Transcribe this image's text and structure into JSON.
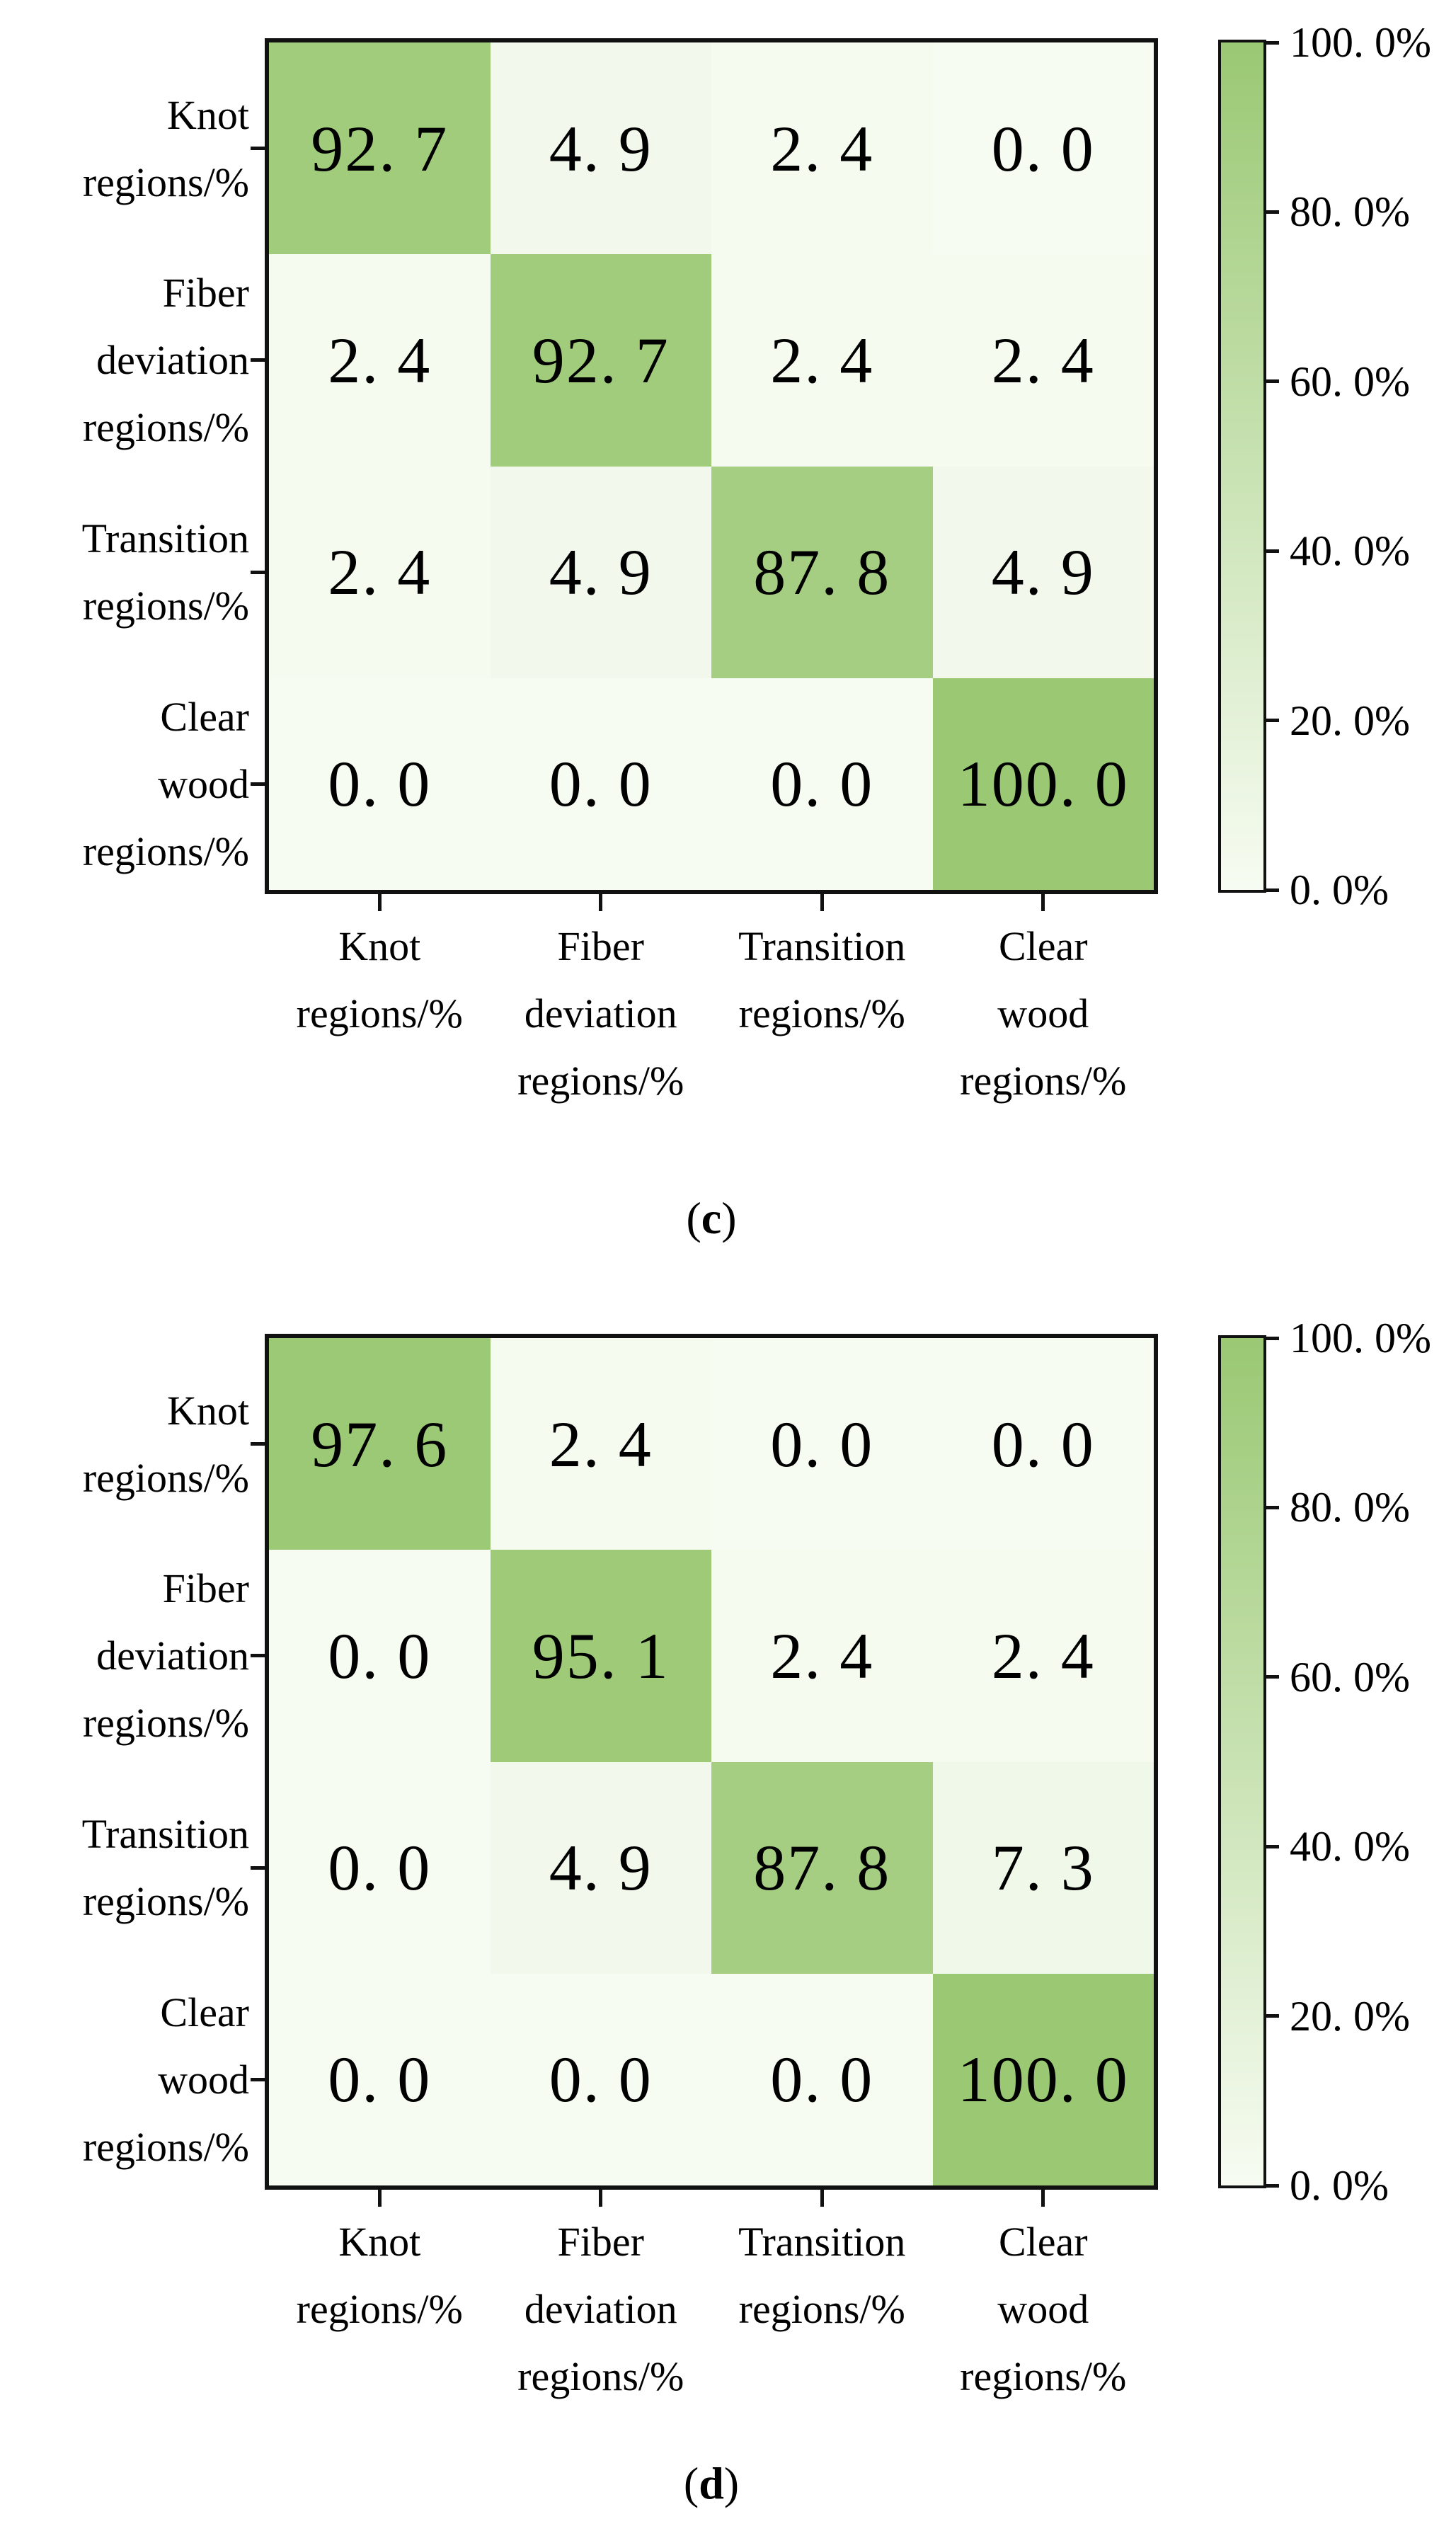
{
  "figure": {
    "background": "#ffffff",
    "colors": {
      "colormap_low": "#f7fcf2",
      "colormap_high": "#9ac873",
      "axis_border": "#111111",
      "text": "#000000"
    }
  },
  "chart_data": [
    {
      "type": "heatmap",
      "caption_letter": "c",
      "caption_display": "(c)",
      "categories": [
        "Knot regions/%",
        "Fiber deviation regions/%",
        "Transition regions/%",
        "Clear wood regions/%"
      ],
      "row_label_lines": [
        [
          "Knot",
          "regions/%"
        ],
        [
          "Fiber",
          "deviation",
          "regions/%"
        ],
        [
          "Transition",
          "regions/%"
        ],
        [
          "Clear",
          "wood",
          "regions/%"
        ]
      ],
      "col_label_lines": [
        [
          "Knot",
          "regions/%"
        ],
        [
          "Fiber",
          "deviation",
          "regions/%"
        ],
        [
          "Transition",
          "regions/%"
        ],
        [
          "Clear",
          "wood",
          "regions/%"
        ]
      ],
      "values": [
        [
          92.7,
          4.9,
          2.4,
          0.0
        ],
        [
          2.4,
          92.7,
          2.4,
          2.4
        ],
        [
          2.4,
          4.9,
          87.8,
          4.9
        ],
        [
          0.0,
          0.0,
          0.0,
          100.0
        ]
      ],
      "values_display": [
        [
          "92. 7",
          "4. 9",
          "2. 4",
          "0. 0"
        ],
        [
          "2. 4",
          "92. 7",
          "2. 4",
          "2. 4"
        ],
        [
          "2. 4",
          "4. 9",
          "87. 8",
          "4. 9"
        ],
        [
          "0. 0",
          "0. 0",
          "0. 0",
          "100. 0"
        ]
      ],
      "colorbar": {
        "min": 0,
        "max": 100,
        "tick_values": [
          100,
          80,
          60,
          40,
          20,
          0
        ],
        "tick_labels": [
          "100. 0%",
          "80. 0%",
          "60. 0%",
          "40. 0%",
          "20. 0%",
          "0. 0%"
        ]
      },
      "grid": false,
      "legend_position": "right-colorbar"
    },
    {
      "type": "heatmap",
      "caption_letter": "d",
      "caption_display": "(d)",
      "categories": [
        "Knot regions/%",
        "Fiber deviation regions/%",
        "Transition regions/%",
        "Clear wood regions/%"
      ],
      "row_label_lines": [
        [
          "Knot",
          "regions/%"
        ],
        [
          "Fiber",
          "deviation",
          "regions/%"
        ],
        [
          "Transition",
          "regions/%"
        ],
        [
          "Clear",
          "wood",
          "regions/%"
        ]
      ],
      "col_label_lines": [
        [
          "Knot",
          "regions/%"
        ],
        [
          "Fiber",
          "deviation",
          "regions/%"
        ],
        [
          "Transition",
          "regions/%"
        ],
        [
          "Clear",
          "wood",
          "regions/%"
        ]
      ],
      "values": [
        [
          97.6,
          2.4,
          0.0,
          0.0
        ],
        [
          0.0,
          95.1,
          2.4,
          2.4
        ],
        [
          0.0,
          4.9,
          87.8,
          7.3
        ],
        [
          0.0,
          0.0,
          0.0,
          100.0
        ]
      ],
      "values_display": [
        [
          "97. 6",
          "2. 4",
          "0. 0",
          "0. 0"
        ],
        [
          "0. 0",
          "95. 1",
          "2. 4",
          "2. 4"
        ],
        [
          "0. 0",
          "4. 9",
          "87. 8",
          "7. 3"
        ],
        [
          "0. 0",
          "0. 0",
          "0. 0",
          "100. 0"
        ]
      ],
      "colorbar": {
        "min": 0,
        "max": 100,
        "tick_values": [
          100,
          80,
          60,
          40,
          20,
          0
        ],
        "tick_labels": [
          "100. 0%",
          "80. 0%",
          "60. 0%",
          "40. 0%",
          "20. 0%",
          "0. 0%"
        ]
      },
      "grid": false,
      "legend_position": "right-colorbar"
    }
  ]
}
